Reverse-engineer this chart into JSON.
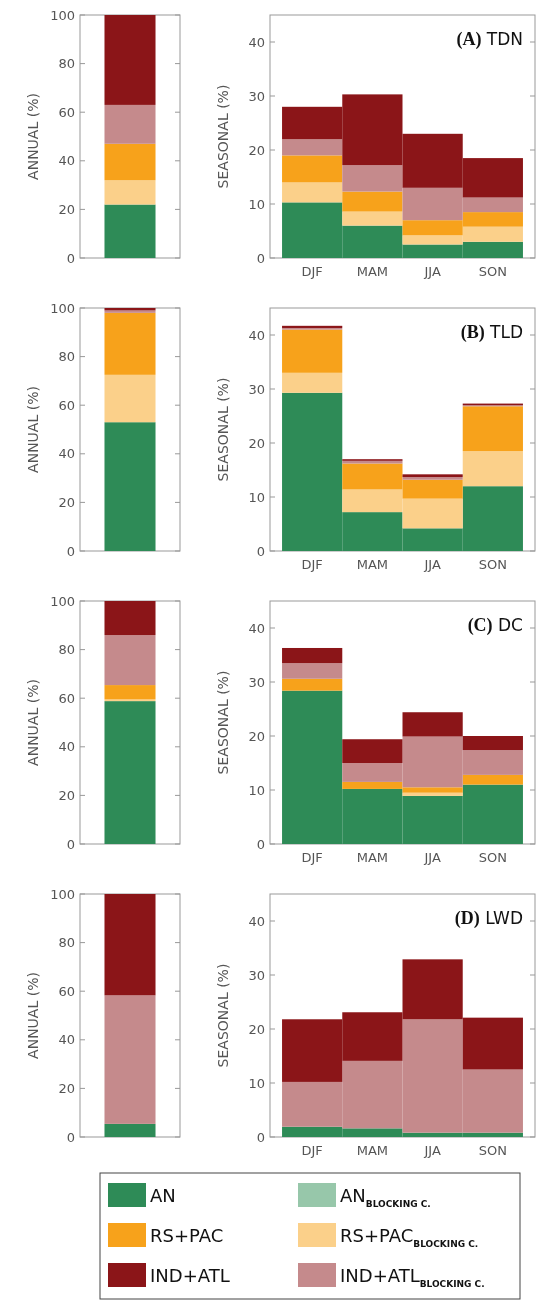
{
  "chart_data": [
    {
      "type": "bar",
      "stacked": true,
      "ylabel": "ANNUAL (%)",
      "categories": [
        null
      ],
      "ylim": [
        0,
        100
      ],
      "yticks": [
        0,
        20,
        40,
        60,
        80,
        100
      ],
      "series": [
        {
          "color": "#2e8b57",
          "values": [
            22
          ]
        },
        {
          "color": "#97c7aa",
          "values": [
            0
          ]
        },
        {
          "color": "#fbd08a",
          "values": [
            10
          ]
        },
        {
          "color": "#f7a21b",
          "values": [
            15
          ]
        },
        {
          "color": "#c58a8c",
          "values": [
            16
          ]
        },
        {
          "color": "#8b1518",
          "values": [
            37
          ]
        }
      ]
    },
    {
      "type": "bar",
      "stacked": true,
      "title": "(A) TDN",
      "ylabel": "SEASONAL (%)",
      "categories": [
        "DJF",
        "MAM",
        "JJA",
        "SON"
      ],
      "ylim": [
        0,
        45
      ],
      "yticks": [
        0,
        10,
        20,
        30,
        40
      ],
      "series": [
        {
          "color": "#2e8b57",
          "values": [
            10.3,
            6,
            2.5,
            3
          ]
        },
        {
          "color": "#97c7aa",
          "values": [
            0,
            0,
            0,
            0
          ]
        },
        {
          "color": "#fbd08a",
          "values": [
            3.7,
            2.6,
            1.7,
            2.8
          ]
        },
        {
          "color": "#f7a21b",
          "values": [
            5,
            3.7,
            2.8,
            2.7
          ]
        },
        {
          "color": "#c58a8c",
          "values": [
            3,
            4.9,
            6,
            2.7
          ]
        },
        {
          "color": "#8b1518",
          "values": [
            6,
            13.1,
            10,
            7.3
          ]
        }
      ]
    },
    {
      "type": "bar",
      "stacked": true,
      "ylabel": "ANNUAL (%)",
      "categories": [
        null
      ],
      "ylim": [
        0,
        100
      ],
      "yticks": [
        0,
        20,
        40,
        60,
        80,
        100
      ],
      "series": [
        {
          "color": "#2e8b57",
          "values": [
            53
          ]
        },
        {
          "color": "#97c7aa",
          "values": [
            0
          ]
        },
        {
          "color": "#fbd08a",
          "values": [
            19.5
          ]
        },
        {
          "color": "#f7a21b",
          "values": [
            25.5
          ]
        },
        {
          "color": "#c58a8c",
          "values": [
            1
          ]
        },
        {
          "color": "#8b1518",
          "values": [
            1
          ]
        }
      ]
    },
    {
      "type": "bar",
      "stacked": true,
      "title": "(B) TLD",
      "ylabel": "SEASONAL (%)",
      "categories": [
        "DJF",
        "MAM",
        "JJA",
        "SON"
      ],
      "ylim": [
        0,
        45
      ],
      "yticks": [
        0,
        10,
        20,
        30,
        40
      ],
      "series": [
        {
          "color": "#2e8b57",
          "values": [
            29.3,
            7.2,
            4.2,
            12
          ]
        },
        {
          "color": "#97c7aa",
          "values": [
            0,
            0,
            0,
            0
          ]
        },
        {
          "color": "#fbd08a",
          "values": [
            3.7,
            4.2,
            5.5,
            6.5
          ]
        },
        {
          "color": "#f7a21b",
          "values": [
            8,
            4.8,
            3.5,
            8.3
          ]
        },
        {
          "color": "#c58a8c",
          "values": [
            0.3,
            0.5,
            0.5,
            0.2
          ]
        },
        {
          "color": "#8b1518",
          "values": [
            0.4,
            0.3,
            0.5,
            0.3
          ]
        }
      ]
    },
    {
      "type": "bar",
      "stacked": true,
      "ylabel": "ANNUAL (%)",
      "categories": [
        null
      ],
      "ylim": [
        0,
        100
      ],
      "yticks": [
        0,
        20,
        40,
        60,
        80,
        100
      ],
      "series": [
        {
          "color": "#2e8b57",
          "values": [
            58.8
          ]
        },
        {
          "color": "#97c7aa",
          "values": [
            0
          ]
        },
        {
          "color": "#fbd08a",
          "values": [
            0.7
          ]
        },
        {
          "color": "#f7a21b",
          "values": [
            5.9
          ]
        },
        {
          "color": "#c58a8c",
          "values": [
            20.6
          ]
        },
        {
          "color": "#8b1518",
          "values": [
            14
          ]
        }
      ]
    },
    {
      "type": "bar",
      "stacked": true,
      "title": "(C) DC",
      "ylabel": "SEASONAL (%)",
      "categories": [
        "DJF",
        "MAM",
        "JJA",
        "SON"
      ],
      "ylim": [
        0,
        45
      ],
      "yticks": [
        0,
        10,
        20,
        30,
        40
      ],
      "series": [
        {
          "color": "#2e8b57",
          "values": [
            28.4,
            10.2,
            8.9,
            11
          ]
        },
        {
          "color": "#97c7aa",
          "values": [
            0,
            0,
            0,
            0
          ]
        },
        {
          "color": "#fbd08a",
          "values": [
            0,
            0,
            0.6,
            0
          ]
        },
        {
          "color": "#f7a21b",
          "values": [
            2.2,
            1.3,
            1,
            1.8
          ]
        },
        {
          "color": "#c58a8c",
          "values": [
            2.9,
            3.5,
            9.4,
            4.6
          ]
        },
        {
          "color": "#8b1518",
          "values": [
            2.8,
            4.4,
            4.5,
            2.6
          ]
        }
      ]
    },
    {
      "type": "bar",
      "stacked": true,
      "ylabel": "ANNUAL (%)",
      "categories": [
        null
      ],
      "ylim": [
        0,
        100
      ],
      "yticks": [
        0,
        20,
        40,
        60,
        80,
        100
      ],
      "series": [
        {
          "color": "#2e8b57",
          "values": [
            5.4
          ]
        },
        {
          "color": "#97c7aa",
          "values": [
            0
          ]
        },
        {
          "color": "#fbd08a",
          "values": [
            0
          ]
        },
        {
          "color": "#f7a21b",
          "values": [
            0
          ]
        },
        {
          "color": "#c58a8c",
          "values": [
            52.9
          ]
        },
        {
          "color": "#8b1518",
          "values": [
            41.7
          ]
        }
      ]
    },
    {
      "type": "bar",
      "stacked": true,
      "title": "(D) LWD",
      "ylabel": "SEASONAL (%)",
      "categories": [
        "DJF",
        "MAM",
        "JJA",
        "SON"
      ],
      "ylim": [
        0,
        45
      ],
      "yticks": [
        0,
        10,
        20,
        30,
        40
      ],
      "legend": "bottom",
      "series": [
        {
          "name": "AN",
          "color": "#2e8b57",
          "values": [
            1.9,
            1.6,
            0.8,
            0.8
          ]
        },
        {
          "name": "AN$_{BLOCKING C.}$",
          "color": "#97c7aa",
          "values": [
            0,
            0,
            0,
            0
          ]
        },
        {
          "name": "RS+PAC$_{BLOCKING C.}$",
          "color": "#fbd08a",
          "values": [
            0,
            0,
            0,
            0
          ]
        },
        {
          "name": "RS+PAC",
          "color": "#f7a21b",
          "values": [
            0,
            0,
            0,
            0
          ]
        },
        {
          "name": "IND+ATL$_{BLOCKING C.}$",
          "color": "#c58a8c",
          "values": [
            8.3,
            12.5,
            21,
            11.7
          ]
        },
        {
          "name": "IND+ATL",
          "color": "#8b1518",
          "values": [
            11.6,
            9,
            11.1,
            9.6
          ]
        }
      ]
    }
  ]
}
